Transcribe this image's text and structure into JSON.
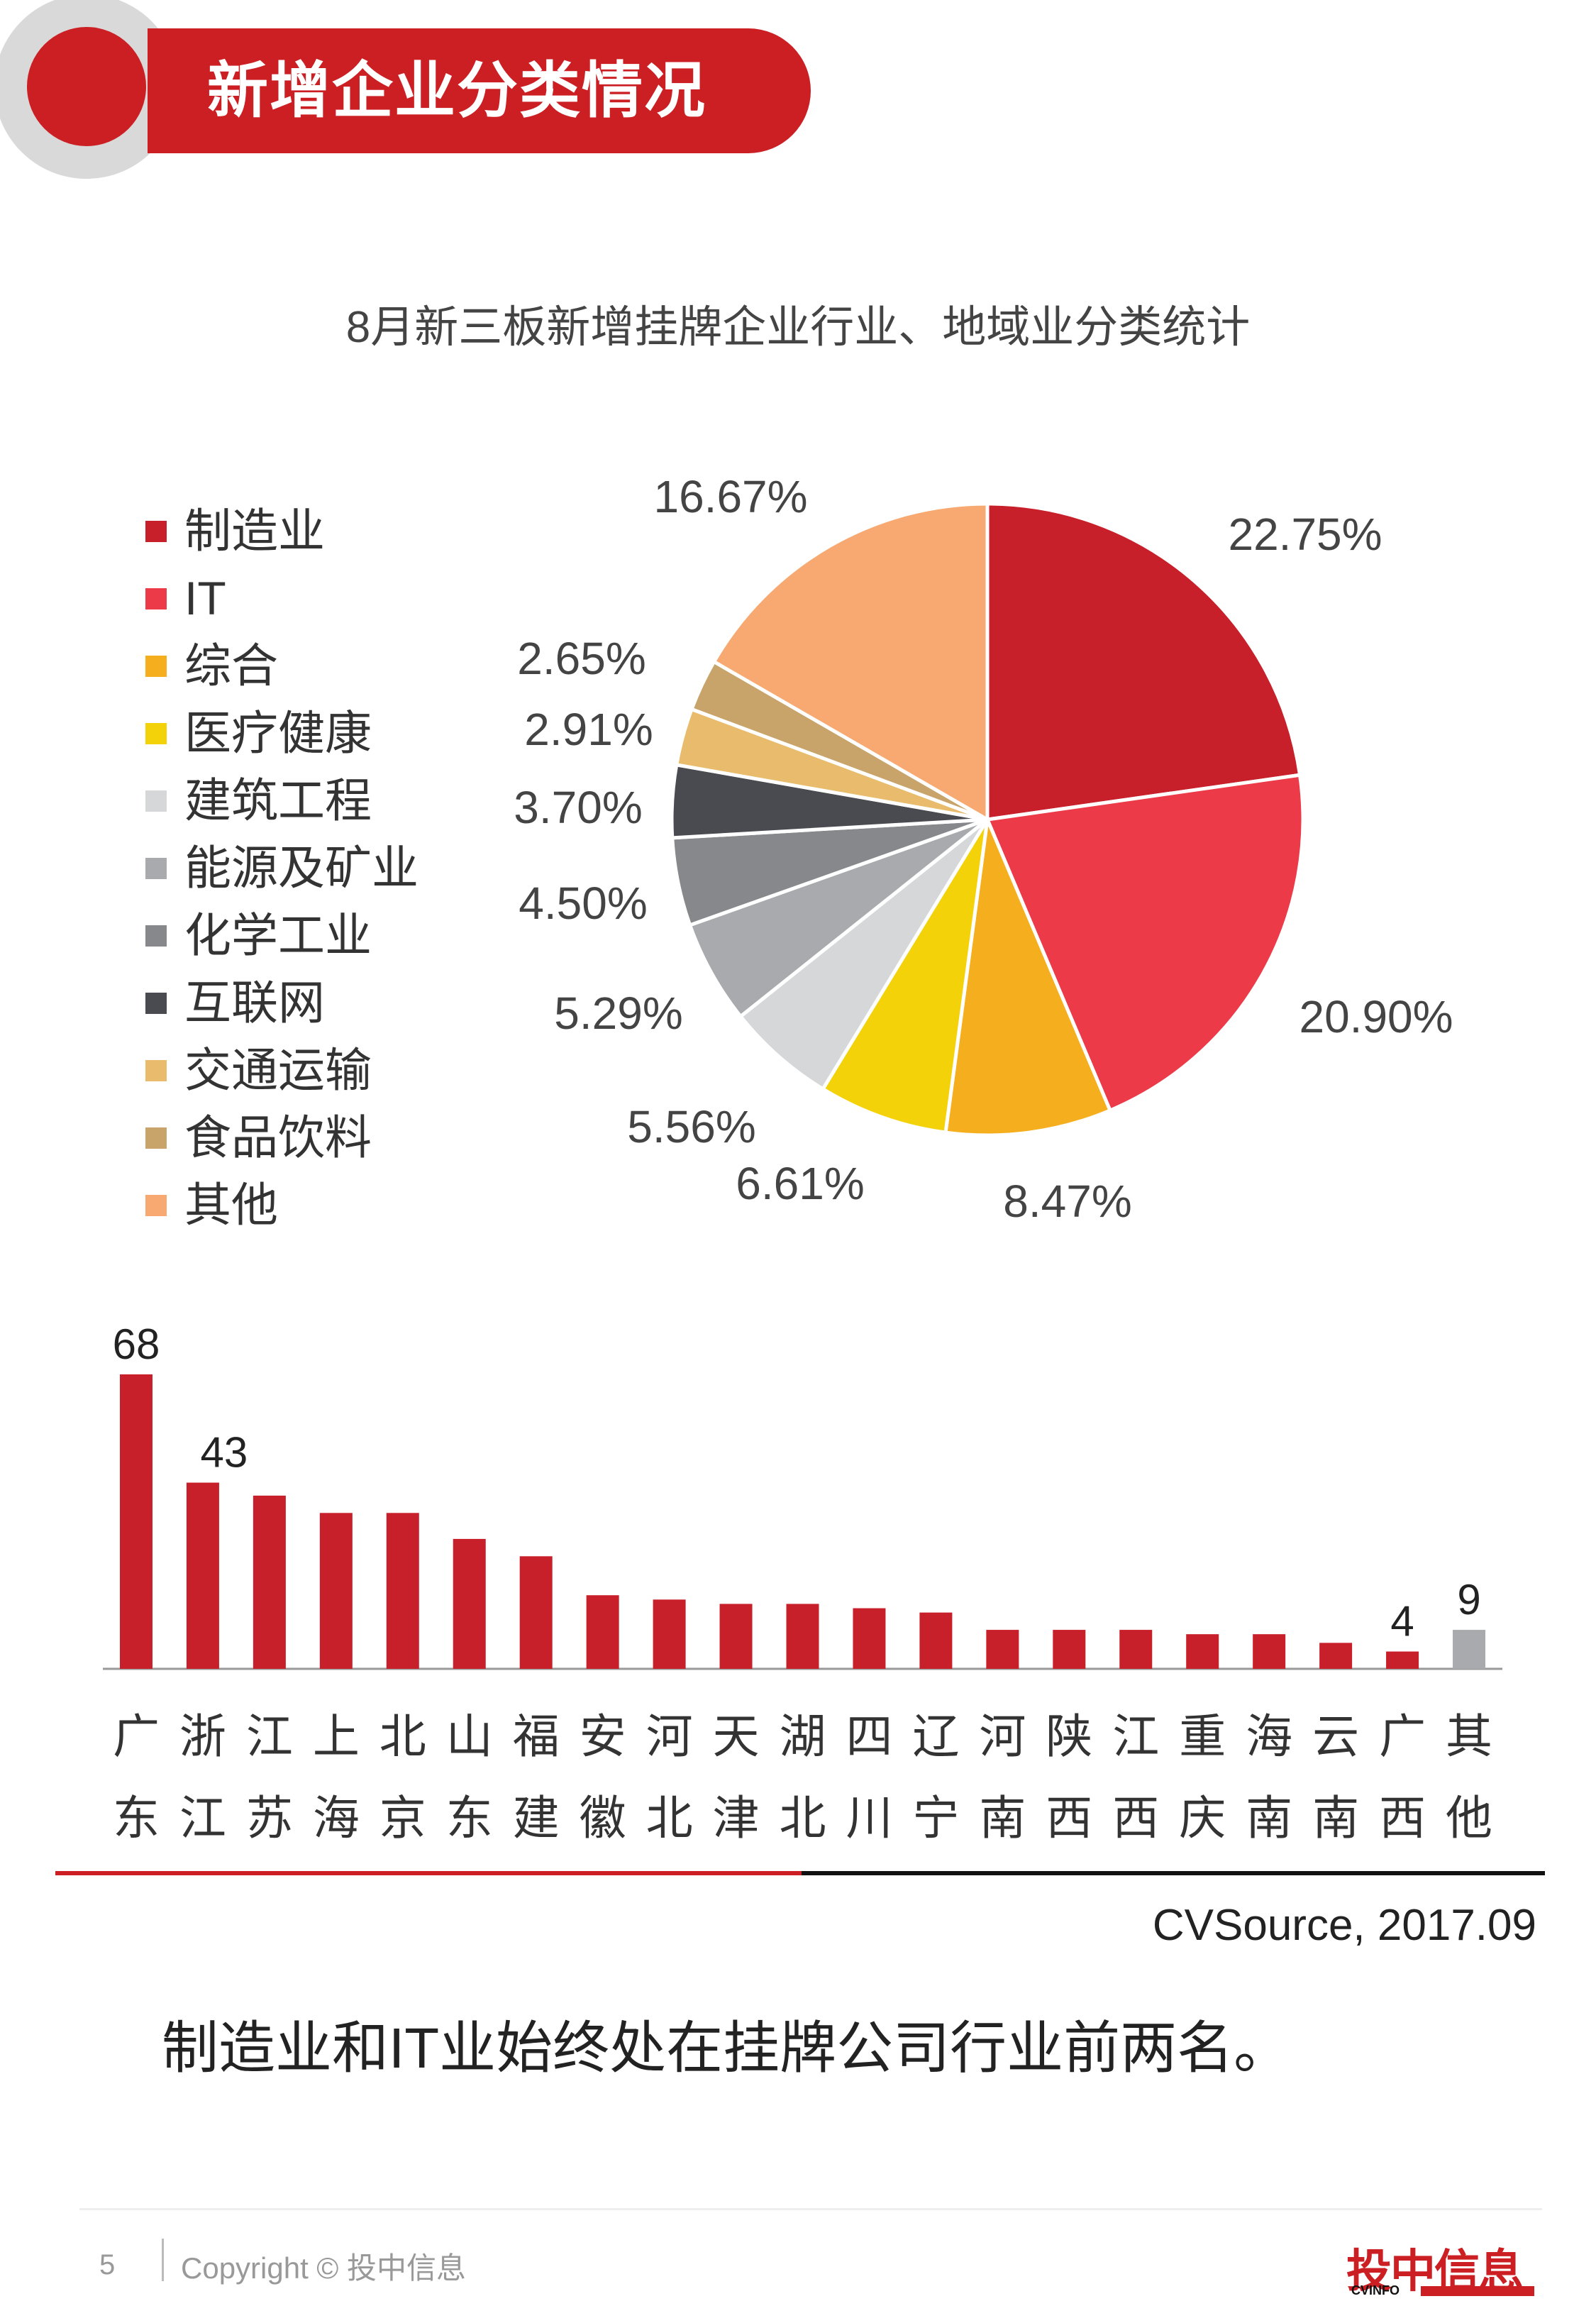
{
  "header": {
    "title": "新增企业分类情况"
  },
  "chart_data": [
    {
      "type": "pie",
      "title": "8月新三板新增挂牌企业行业、地域业分类统计",
      "legend_position": "left",
      "slices": [
        {
          "label": "制造业",
          "value": 22.75,
          "display": "22.75%",
          "color": "#c8202a"
        },
        {
          "label": "IT",
          "value": 20.9,
          "display": "20.90%",
          "color": "#ec3a48"
        },
        {
          "label": "综合",
          "value": 8.47,
          "display": "8.47%",
          "color": "#f5ae1d"
        },
        {
          "label": "医疗健康",
          "value": 6.61,
          "display": "6.61%",
          "color": "#f4d20a"
        },
        {
          "label": "建筑工程",
          "value": 5.56,
          "display": "5.56%",
          "color": "#d6d7d9"
        },
        {
          "label": "能源及矿业",
          "value": 5.29,
          "display": "5.29%",
          "color": "#a8aaad"
        },
        {
          "label": "化学工业",
          "value": 4.5,
          "display": "4.50%",
          "color": "#86888c"
        },
        {
          "label": "互联网",
          "value": 3.7,
          "display": "3.70%",
          "color": "#4a4b50"
        },
        {
          "label": "交通运输",
          "value": 2.91,
          "display": "2.91%",
          "color": "#e8bc6c"
        },
        {
          "label": "食品饮料",
          "value": 2.65,
          "display": "2.65%",
          "color": "#c9a46a"
        },
        {
          "label": "其他",
          "value": 16.67,
          "display": "16.67%",
          "color": "#f7a971"
        }
      ]
    },
    {
      "type": "bar",
      "categories": [
        "广东",
        "浙江",
        "江苏",
        "上海",
        "北京",
        "山东",
        "福建",
        "安徽",
        "河北",
        "天津",
        "湖北",
        "四川",
        "辽宁",
        "河南",
        "陕西",
        "江西",
        "重庆",
        "海南",
        "云南",
        "广西",
        "其他"
      ],
      "values": [
        68,
        43,
        40,
        36,
        36,
        30,
        26,
        17,
        16,
        15,
        15,
        14,
        13,
        9,
        9,
        9,
        8,
        8,
        6,
        4,
        9
      ],
      "shown_labels": {
        "0": "68",
        "1": "43",
        "19": "4",
        "20": "9"
      },
      "colors": {
        "default": "#c8202a",
        "other": "#a8aaad"
      }
    }
  ],
  "source": "CVSource, 2017.09",
  "conclusion": "制造业和IT业始终处在挂牌公司行业前两名。",
  "footer": {
    "page": "5",
    "copyright": "Copyright © 投中信息",
    "logo": "投中信息",
    "logo_sub": "CVINFO"
  }
}
